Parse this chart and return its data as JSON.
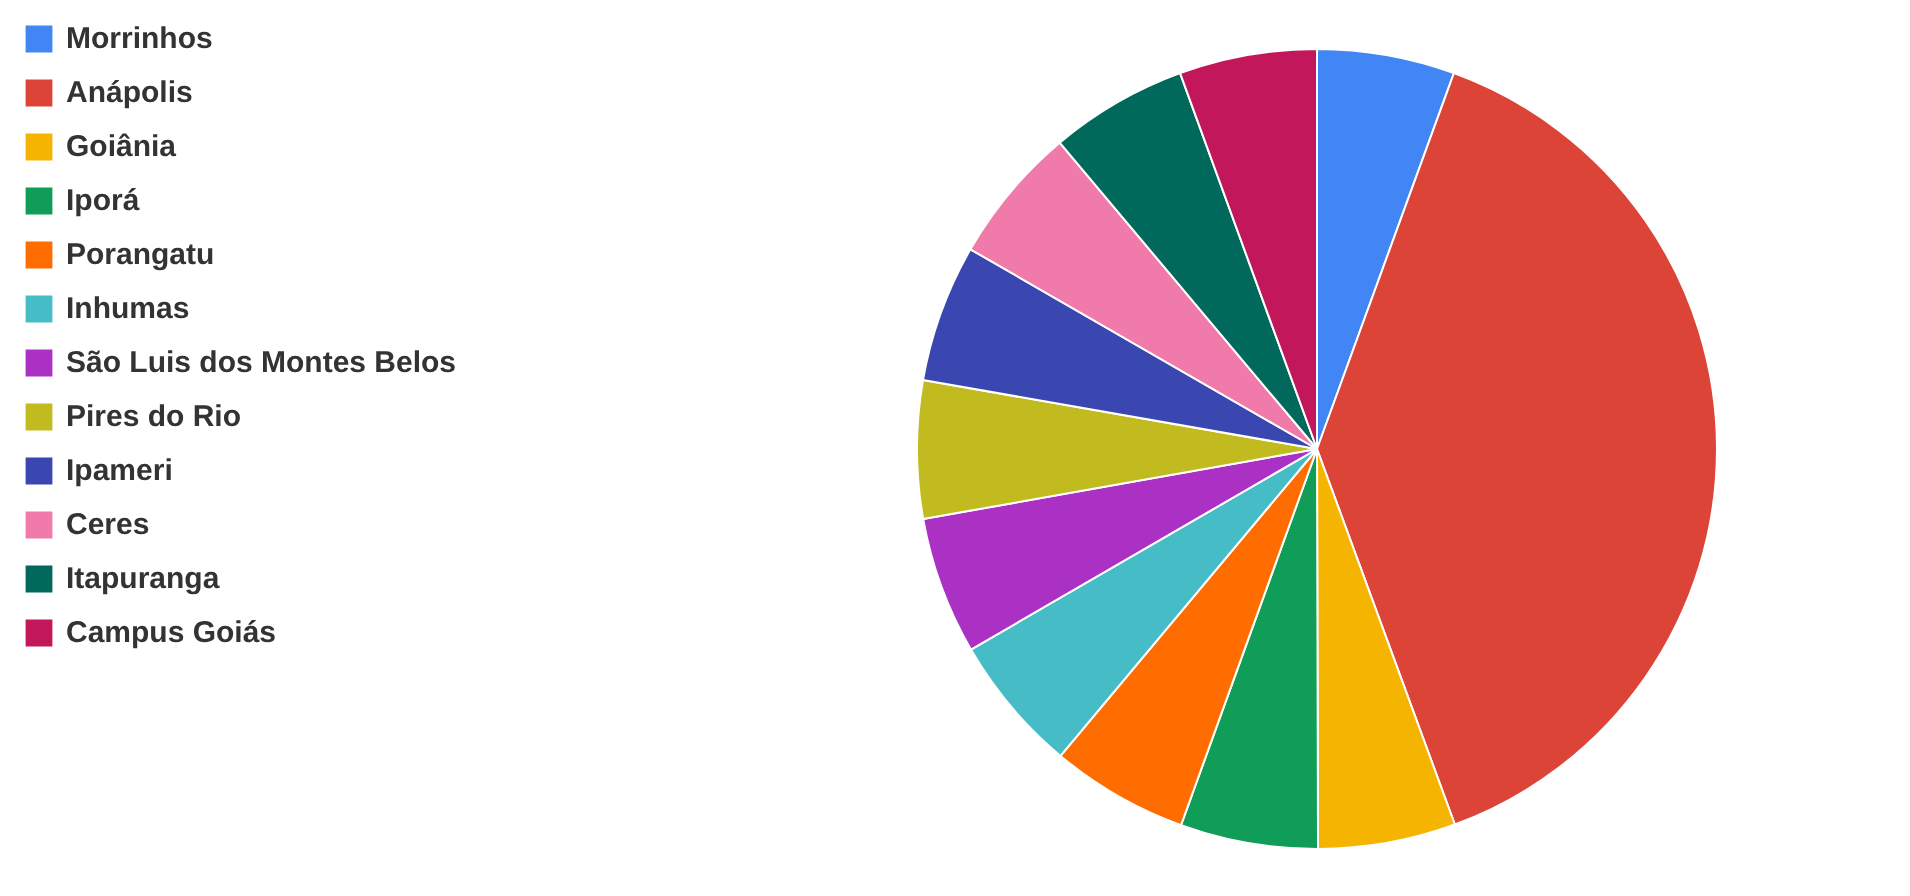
{
  "chart_data": {
    "type": "pie",
    "categories": [
      "Morrinhos",
      "Anápolis",
      "Goiânia",
      "Iporá",
      "Porangatu",
      "Inhumas",
      "São Luis dos Montes Belos",
      "Pires do Rio",
      "Ipameri",
      "Ceres",
      "Itapuranga",
      "Campus Goiás"
    ],
    "values": [
      5.56,
      38.84,
      5.56,
      5.56,
      5.56,
      5.56,
      5.56,
      5.56,
      5.56,
      5.56,
      5.56,
      5.56
    ],
    "colors": [
      "#4285f4",
      "#db4437",
      "#f4b400",
      "#0f9d58",
      "#ff6d01",
      "#46bdc6",
      "#ab30c4",
      "#c2bb1f",
      "#3b47b0",
      "#f07bab",
      "#00695c",
      "#c2185b"
    ],
    "legend": "left"
  }
}
